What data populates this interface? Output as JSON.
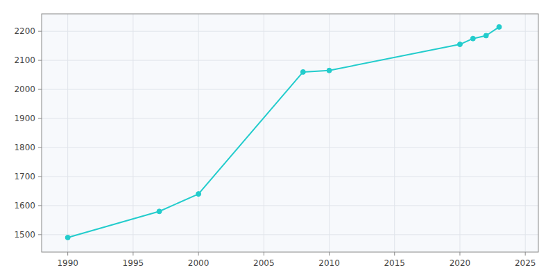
{
  "chart_data": {
    "type": "line",
    "x": [
      1990,
      1997,
      2000,
      2008,
      2010,
      2020,
      2021,
      2022,
      2023
    ],
    "values": [
      1490,
      1580,
      1640,
      2060,
      2065,
      2155,
      2175,
      2185,
      2215
    ],
    "color": "#22CCCC",
    "marker": "circle",
    "xlim": [
      1988,
      2026
    ],
    "ylim": [
      1440,
      2260
    ],
    "xticks": [
      1990,
      1995,
      2000,
      2005,
      2010,
      2015,
      2020,
      2025
    ],
    "yticks": [
      1500,
      1600,
      1700,
      1800,
      1900,
      2000,
      2100,
      2200
    ],
    "grid": true
  }
}
